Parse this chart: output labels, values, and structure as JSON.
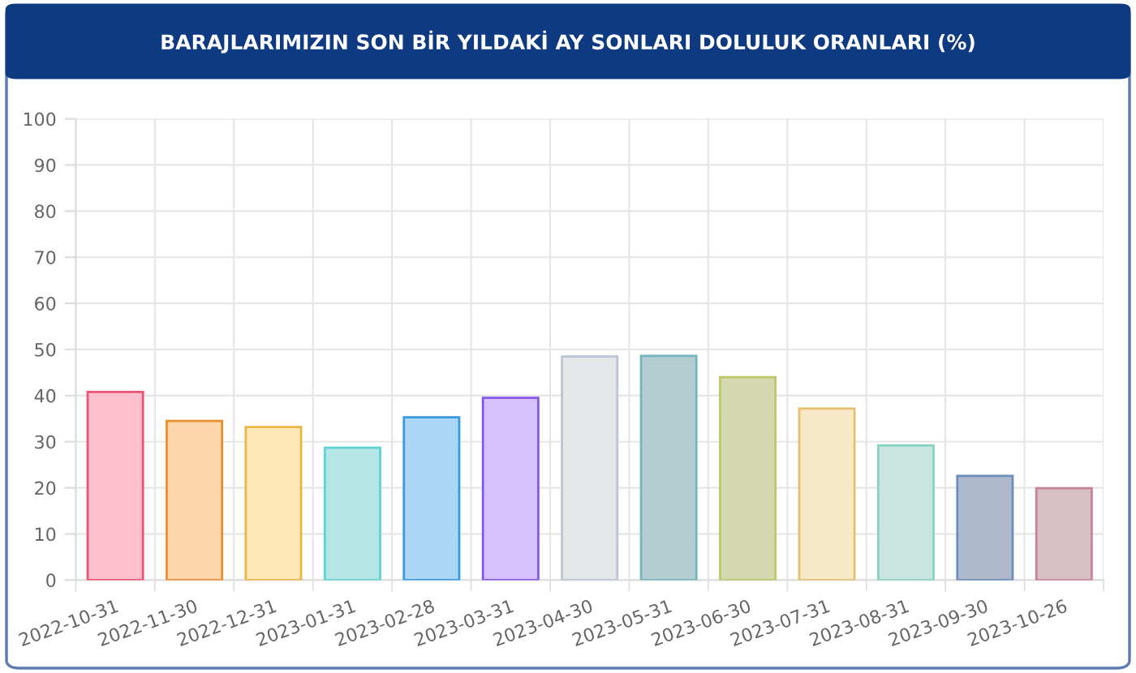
{
  "chart_data": {
    "type": "bar",
    "title": "BARAJLARIMIZIN SON BİR YILDAKİ AY SONLARI DOLULUK ORANLARI (%)",
    "categories": [
      "2022-10-31",
      "2022-11-30",
      "2022-12-31",
      "2023-01-31",
      "2023-02-28",
      "2023-03-31",
      "2023-04-30",
      "2023-05-31",
      "2023-06-30",
      "2023-07-31",
      "2023-08-31",
      "2023-09-30",
      "2023-10-26"
    ],
    "values": [
      40.8,
      34.5,
      33.2,
      28.7,
      35.3,
      39.5,
      48.5,
      48.6,
      44.0,
      37.2,
      29.2,
      22.6,
      19.9
    ],
    "colors": [
      "#ffc0cd",
      "#fed6ab",
      "#ffe8b8",
      "#b6e5e5",
      "#acd6f5",
      "#d5c1fe",
      "#e6e7e9",
      "#b3cdd0",
      "#d4d9b2",
      "#f7e9c8",
      "#c9e5df",
      "#aebacb",
      "#d7c0c6"
    ],
    "ylim": [
      0,
      100
    ],
    "yticks": [
      0,
      10,
      20,
      30,
      40,
      50,
      60,
      70,
      80,
      90,
      100
    ],
    "grid": true
  }
}
